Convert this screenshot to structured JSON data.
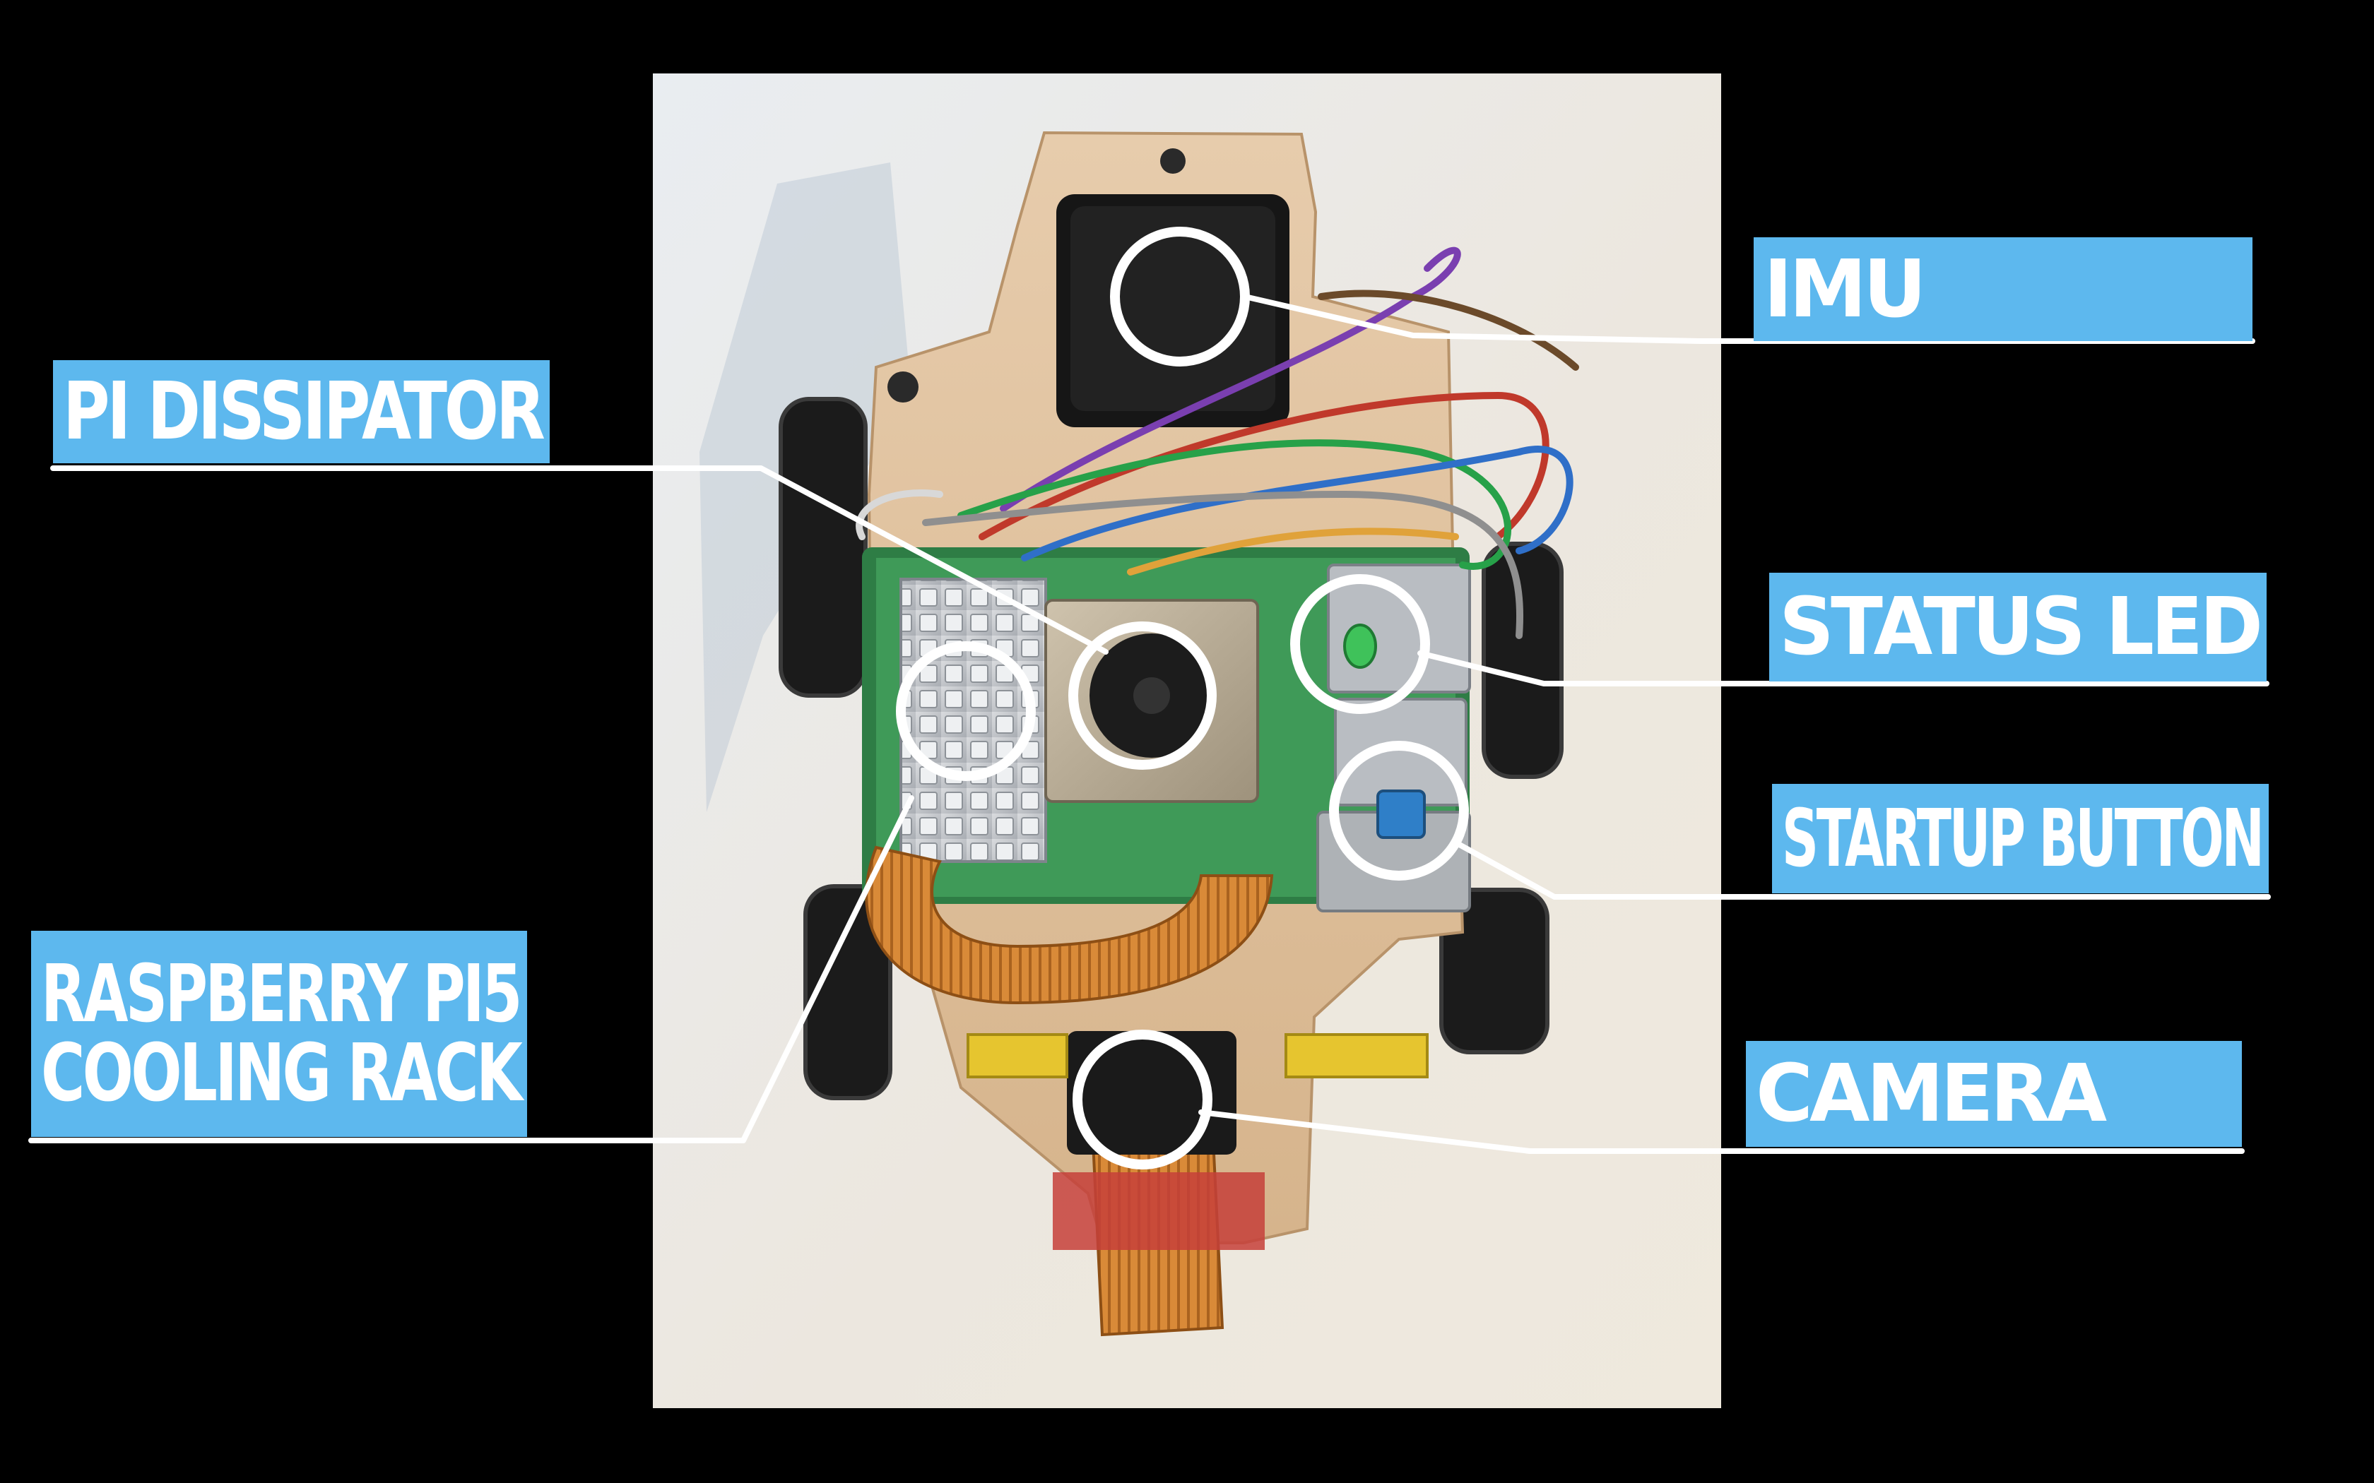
{
  "labels": {
    "imu": "IMU",
    "pi_dissipator": "PI DISSIPATOR",
    "status_led": "STATUS LED",
    "startup_button": "STARTUP BUTTON",
    "cooling_rack_line1": "RASPBERRY PI5",
    "cooling_rack_line2": "COOLING RACK",
    "camera": "CAMERA"
  },
  "colors": {
    "background": "#000000",
    "label_fill": "#5db8ee",
    "label_text": "#ffffff",
    "leader_line": "#ffffff"
  }
}
